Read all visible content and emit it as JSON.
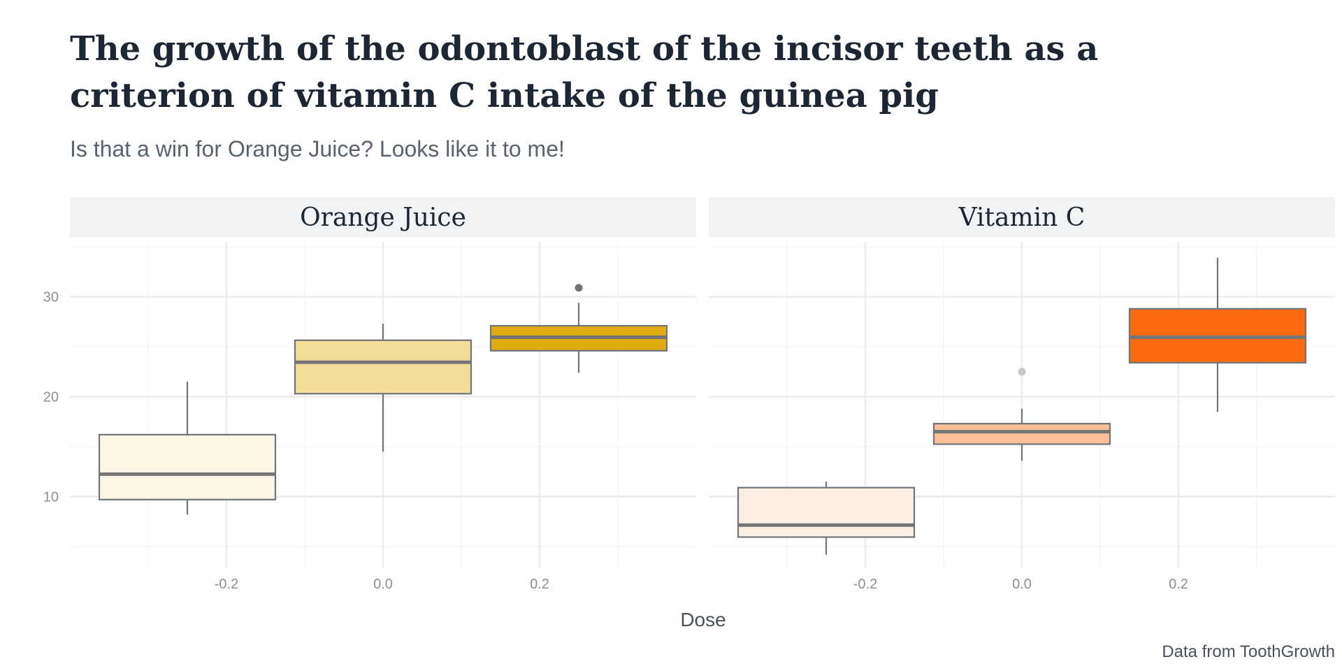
{
  "chart_data": {
    "type": "boxplot",
    "title_lines": [
      "The growth of the odontoblast of the incisor teeth as a",
      "criterion of vitamin C intake of the guinea pig"
    ],
    "subtitle": "Is that a win for Orange Juice? Looks like it to me!",
    "xlabel": "Dose",
    "ylabel": "",
    "caption": "Data from ToothGrowth",
    "xlim": [
      -0.4,
      0.4
    ],
    "ylim": [
      2.9,
      35.5
    ],
    "x_ticks": [
      -0.2,
      0.0,
      0.2
    ],
    "x_tick_labels": [
      "-0.2",
      "0.0",
      "0.2"
    ],
    "y_ticks": [
      10,
      20,
      30
    ],
    "y_tick_labels": [
      "10",
      "20",
      "30"
    ],
    "grid": true,
    "box_width": 0.225,
    "panels": [
      {
        "label": "Orange Juice",
        "boxes": [
          {
            "x": -0.25,
            "lower_whisker": 8.2,
            "q1": 9.7,
            "median": 12.25,
            "q3": 16.2,
            "upper_whisker": 21.5,
            "outliers": [],
            "fill": "#fbf6e4"
          },
          {
            "x": 0.0,
            "lower_whisker": 14.5,
            "q1": 20.3,
            "median": 23.45,
            "q3": 25.65,
            "upper_whisker": 27.3,
            "outliers": [],
            "fill": "#f2dc98"
          },
          {
            "x": 0.25,
            "lower_whisker": 22.4,
            "q1": 24.6,
            "median": 25.95,
            "q3": 27.1,
            "upper_whisker": 29.4,
            "outliers": [
              30.9
            ],
            "fill": "#e0ac10"
          }
        ]
      },
      {
        "label": "Vitamin C",
        "boxes": [
          {
            "x": -0.25,
            "lower_whisker": 4.2,
            "q1": 5.95,
            "median": 7.15,
            "q3": 10.9,
            "upper_whisker": 11.5,
            "outliers": [],
            "fill": "#fdefe4"
          },
          {
            "x": 0.0,
            "lower_whisker": 13.6,
            "q1": 15.25,
            "median": 16.5,
            "q3": 17.3,
            "upper_whisker": 18.8,
            "outliers": [
              22.5
            ],
            "fill": "#fdbf98"
          },
          {
            "x": 0.25,
            "lower_whisker": 18.5,
            "q1": 23.4,
            "median": 25.95,
            "q3": 28.8,
            "upper_whisker": 33.9,
            "outliers": [],
            "fill": "#fd6a10"
          }
        ]
      }
    ]
  }
}
